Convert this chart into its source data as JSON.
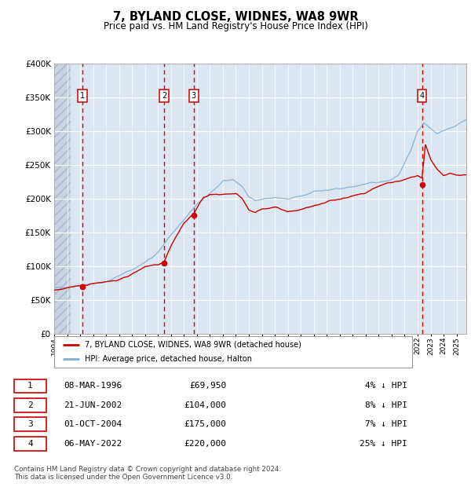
{
  "title": "7, BYLAND CLOSE, WIDNES, WA8 9WR",
  "subtitle": "Price paid vs. HM Land Registry's House Price Index (HPI)",
  "ylim": [
    0,
    400000
  ],
  "yticks": [
    0,
    50000,
    100000,
    150000,
    200000,
    250000,
    300000,
    350000,
    400000
  ],
  "plot_bg_color": "#dce6f1",
  "red_line_color": "#cc0000",
  "blue_line_color": "#7eb0d4",
  "transactions": [
    {
      "num": 1,
      "date": 1996.19,
      "price": 69950
    },
    {
      "num": 2,
      "date": 2002.47,
      "price": 104000
    },
    {
      "num": 3,
      "date": 2004.75,
      "price": 175000
    },
    {
      "num": 4,
      "date": 2022.34,
      "price": 220000
    }
  ],
  "xmin": 1994.0,
  "xmax": 2025.75,
  "legend_items": [
    "7, BYLAND CLOSE, WIDNES, WA8 9WR (detached house)",
    "HPI: Average price, detached house, Halton"
  ],
  "footnote": "Contains HM Land Registry data © Crown copyright and database right 2024.\nThis data is licensed under the Open Government Licence v3.0.",
  "table_rows": [
    [
      "1",
      "08-MAR-1996",
      "£69,950",
      "4% ↓ HPI"
    ],
    [
      "2",
      "21-JUN-2002",
      "£104,000",
      "8% ↓ HPI"
    ],
    [
      "3",
      "01-OCT-2004",
      "£175,000",
      "7% ↓ HPI"
    ],
    [
      "4",
      "06-MAY-2022",
      "£220,000",
      "25% ↓ HPI"
    ]
  ]
}
